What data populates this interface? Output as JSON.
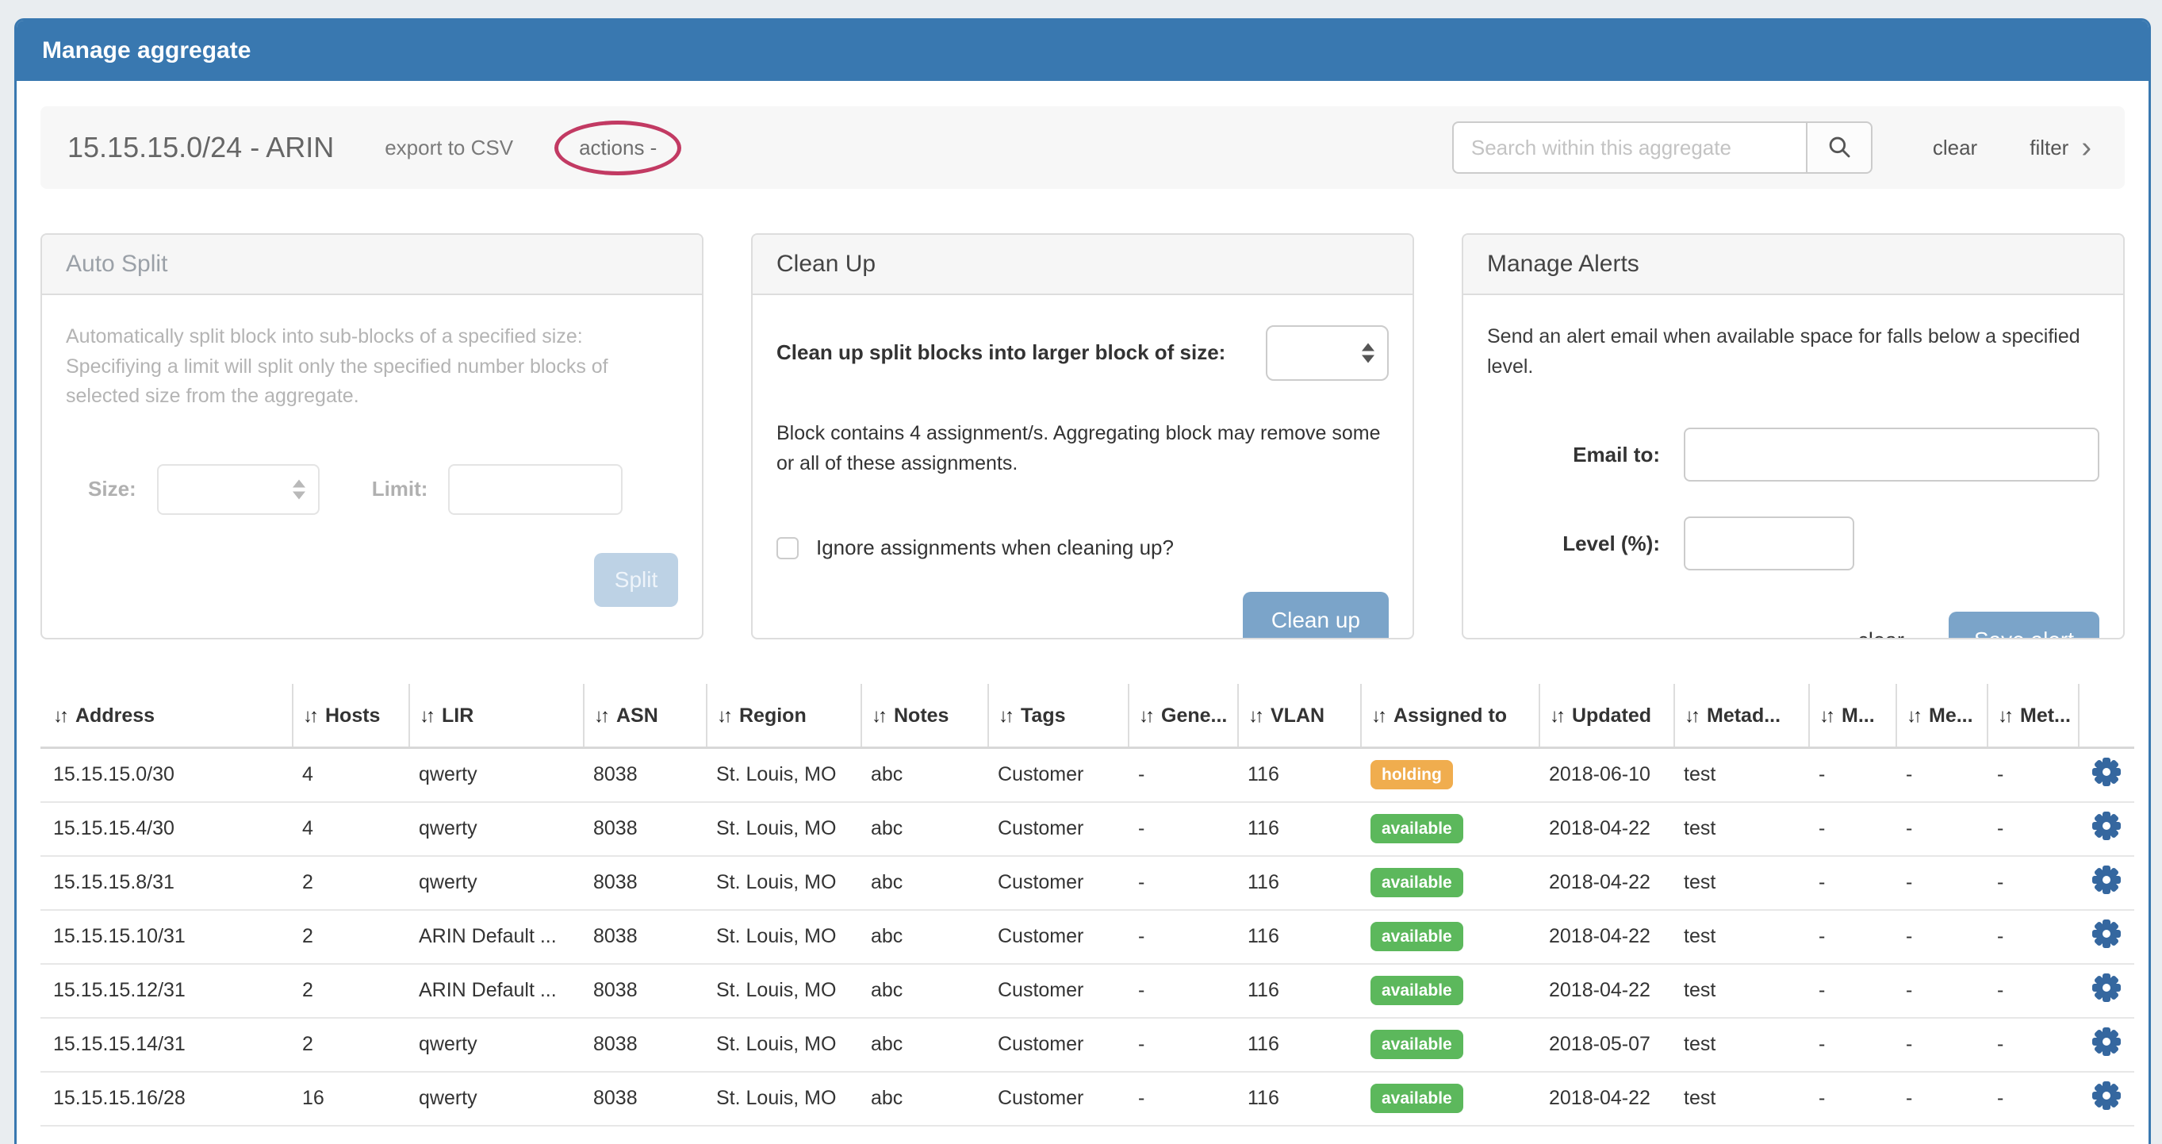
{
  "header": {
    "title": "Manage aggregate"
  },
  "toolbar": {
    "aggregate_title": "15.15.15.0/24 - ARIN",
    "export_csv_label": "export to CSV",
    "actions_label": "actions -",
    "search_placeholder": "Search within this aggregate",
    "search_icon": "magnifier",
    "clear_label": "clear",
    "filter_label": "filter",
    "filter_chevron": "›"
  },
  "panels": {
    "auto_split": {
      "title": "Auto Split",
      "description": "Automatically split block into sub-blocks of a specified size: Specifiying a limit will split only the specified number blocks of selected size from the aggregate.",
      "size_label": "Size:",
      "size_value": "",
      "limit_label": "Limit:",
      "limit_value": "",
      "split_button": "Split",
      "disabled": true
    },
    "clean_up": {
      "title": "Clean Up",
      "size_label": "Clean up split blocks into larger block of size:",
      "size_value": "",
      "note": "Block contains 4 assignment/s. Aggregating block may remove some or all of these assignments.",
      "checkbox_label": "Ignore assignments when cleaning up?",
      "checkbox_checked": false,
      "button": "Clean up"
    },
    "manage_alerts": {
      "title": "Manage Alerts",
      "description": "Send an alert email when available space for falls below a specified level.",
      "email_label": "Email to:",
      "email_value": "",
      "level_label": "Level (%):",
      "level_value": "",
      "clear_label": "clear",
      "save_button": "Save alert"
    }
  },
  "table": {
    "sort_icon_glyph": "↓↑",
    "columns": [
      {
        "key": "address",
        "label": "Address"
      },
      {
        "key": "hosts",
        "label": "Hosts"
      },
      {
        "key": "lir",
        "label": "LIR"
      },
      {
        "key": "asn",
        "label": "ASN"
      },
      {
        "key": "region",
        "label": "Region"
      },
      {
        "key": "notes",
        "label": "Notes"
      },
      {
        "key": "tags",
        "label": "Tags"
      },
      {
        "key": "generic",
        "label": "Gene..."
      },
      {
        "key": "vlan",
        "label": "VLAN"
      },
      {
        "key": "assigned_to",
        "label": "Assigned to"
      },
      {
        "key": "updated",
        "label": "Updated"
      },
      {
        "key": "metadata",
        "label": "Metad..."
      },
      {
        "key": "m1",
        "label": "M..."
      },
      {
        "key": "m2",
        "label": "Me..."
      },
      {
        "key": "m3",
        "label": "Met..."
      }
    ],
    "rows": [
      {
        "address": "15.15.15.0/30",
        "hosts": "4",
        "lir": "qwerty",
        "asn": "8038",
        "region": "St. Louis, MO",
        "notes": "abc",
        "tags": "Customer",
        "generic": "-",
        "vlan": "116",
        "assigned_to": "holding",
        "updated": "2018-06-10",
        "metadata": "test",
        "m1": "-",
        "m2": "-",
        "m3": "-"
      },
      {
        "address": "15.15.15.4/30",
        "hosts": "4",
        "lir": "qwerty",
        "asn": "8038",
        "region": "St. Louis, MO",
        "notes": "abc",
        "tags": "Customer",
        "generic": "-",
        "vlan": "116",
        "assigned_to": "available",
        "updated": "2018-04-22",
        "metadata": "test",
        "m1": "-",
        "m2": "-",
        "m3": "-"
      },
      {
        "address": "15.15.15.8/31",
        "hosts": "2",
        "lir": "qwerty",
        "asn": "8038",
        "region": "St. Louis, MO",
        "notes": "abc",
        "tags": "Customer",
        "generic": "-",
        "vlan": "116",
        "assigned_to": "available",
        "updated": "2018-04-22",
        "metadata": "test",
        "m1": "-",
        "m2": "-",
        "m3": "-"
      },
      {
        "address": "15.15.15.10/31",
        "hosts": "2",
        "lir": "ARIN Default ...",
        "asn": "8038",
        "region": "St. Louis, MO",
        "notes": "abc",
        "tags": "Customer",
        "generic": "-",
        "vlan": "116",
        "assigned_to": "available",
        "updated": "2018-04-22",
        "metadata": "test",
        "m1": "-",
        "m2": "-",
        "m3": "-"
      },
      {
        "address": "15.15.15.12/31",
        "hosts": "2",
        "lir": "ARIN Default ...",
        "asn": "8038",
        "region": "St. Louis, MO",
        "notes": "abc",
        "tags": "Customer",
        "generic": "-",
        "vlan": "116",
        "assigned_to": "available",
        "updated": "2018-04-22",
        "metadata": "test",
        "m1": "-",
        "m2": "-",
        "m3": "-"
      },
      {
        "address": "15.15.15.14/31",
        "hosts": "2",
        "lir": "qwerty",
        "asn": "8038",
        "region": "St. Louis, MO",
        "notes": "abc",
        "tags": "Customer",
        "generic": "-",
        "vlan": "116",
        "assigned_to": "available",
        "updated": "2018-05-07",
        "metadata": "test",
        "m1": "-",
        "m2": "-",
        "m3": "-"
      },
      {
        "address": "15.15.15.16/28",
        "hosts": "16",
        "lir": "qwerty",
        "asn": "8038",
        "region": "St. Louis, MO",
        "notes": "abc",
        "tags": "Customer",
        "generic": "-",
        "vlan": "116",
        "assigned_to": "available",
        "updated": "2018-04-22",
        "metadata": "test",
        "m1": "-",
        "m2": "-",
        "m3": "-"
      }
    ]
  },
  "colors": {
    "header_blue": "#3978b0",
    "button_blue": "#7ba4c9",
    "badge_holding": "#f0ad4e",
    "badge_available": "#5cb85c",
    "gear_blue": "#35679f",
    "annotation_red": "#c23a63"
  }
}
